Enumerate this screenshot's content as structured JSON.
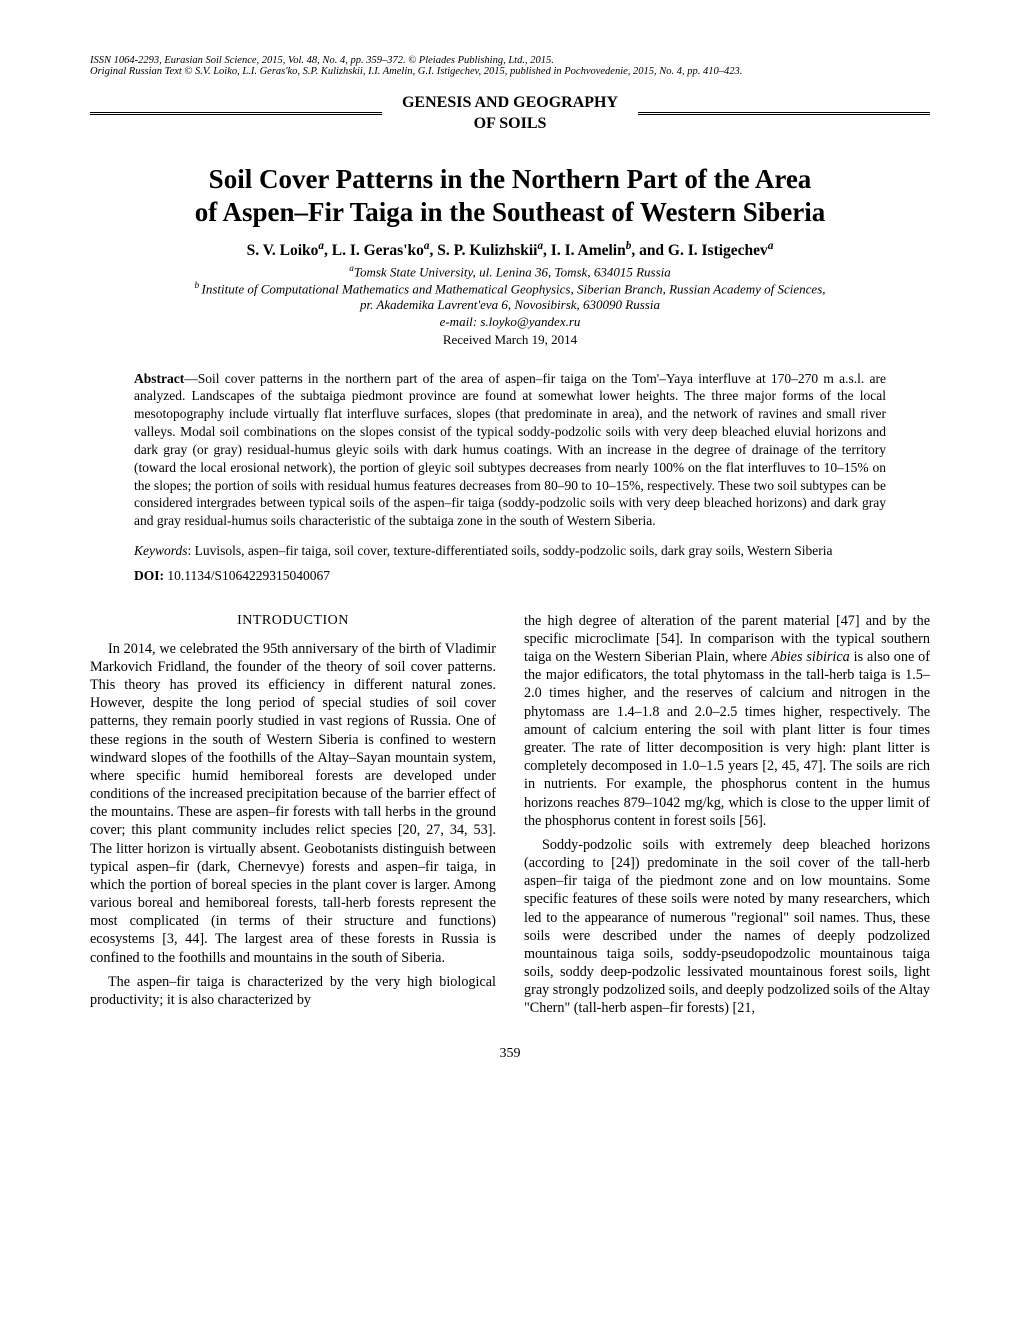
{
  "header": {
    "issn_line": "ISSN 1064-2293, Eurasian Soil Science, 2015, Vol. 48, No. 4, pp. 359–372. © Pleiades Publishing, Ltd., 2015.",
    "russian_text_line": "Original Russian Text © S.V. Loiko, L.I. Geras'ko, S.P. Kulizhskii, I.I. Amelin, G.I. Istigechev, 2015, published in Pochvovedenie, 2015, No. 4, pp. 410–423.",
    "section_title_line1": "GENESIS AND GEOGRAPHY",
    "section_title_line2": "OF SOILS"
  },
  "title": {
    "line1": "Soil Cover Patterns in the Northern Part of the Area",
    "line2": "of Aspen–Fir Taiga in the Southeast of Western Siberia"
  },
  "authors_html": "S. V. Loiko<sup>a</sup>, L. I. Geras'ko<sup>a</sup>, S. P. Kulizhskii<sup>a</sup>, I. I. Amelin<sup>b</sup>, and G. I. Istigechev<sup>a</sup>",
  "affiliations": {
    "a": "Tomsk State University, ul. Lenina 36, Tomsk, 634015 Russia",
    "b_line1": "Institute of Computational Mathematics and Mathematical Geophysics, Siberian Branch, Russian Academy of Sciences,",
    "b_line2": "pr. Akademika Lavrent'eva 6, Novosibirsk, 630090 Russia"
  },
  "email": "e-mail: s.loyko@yandex.ru",
  "received": "Received March 19, 2014",
  "abstract": {
    "label": "Abstract",
    "text": "—Soil cover patterns in the northern part of the area of aspen–fir taiga on the Tom'–Yaya interfluve at 170–270 m a.s.l. are analyzed. Landscapes of the subtaiga piedmont province are found at somewhat lower heights. The three major forms of the local mesotopography include virtually flat interfluve surfaces, slopes (that predominate in area), and the network of ravines and small river valleys. Modal soil combinations on the slopes consist of the typical soddy-podzolic soils with very deep bleached eluvial horizons and dark gray (or gray) residual-humus gleyic soils with dark humus coatings. With an increase in the degree of drainage of the territory (toward the local erosional network), the portion of gleyic soil subtypes decreases from nearly 100% on the flat interfluves to 10–15% on the slopes; the portion of soils with residual humus features decreases from 80–90 to 10–15%, respectively. These two soil subtypes can be considered intergrades between typical soils of the aspen–fir taiga (soddy-podzolic soils with very deep bleached horizons) and dark gray and gray residual-humus soils characteristic of the subtaiga zone in the south of Western Siberia."
  },
  "keywords": {
    "label": "Keywords",
    "text": ": Luvisols, aspen–fir taiga, soil cover, texture-differentiated soils, soddy-podzolic soils, dark gray soils, Western Siberia"
  },
  "doi": {
    "label": "DOI:",
    "value": " 10.1134/S1064229315040067"
  },
  "body": {
    "intro_heading": "INTRODUCTION",
    "left_col": {
      "p1": "In 2014, we celebrated the 95th anniversary of the birth of Vladimir Markovich Fridland, the founder of the theory of soil cover patterns. This theory has proved its efficiency in different natural zones. However, despite the long period of special studies of soil cover patterns, they remain poorly studied in vast regions of Russia. One of these regions in the south of Western Siberia is confined to western windward slopes of the foothills of the Altay–Sayan mountain system, where specific humid hemiboreal forests are developed under conditions of the increased precipitation because of the barrier effect of the mountains. These are aspen–fir forests with tall herbs in the ground cover; this plant community includes relict species [20, 27, 34, 53]. The litter horizon is virtually absent. Geobotanists distinguish between typical aspen–fir (dark, Chernevye) forests and aspen–fir taiga, in which the portion of boreal species in the plant cover is larger. Among various boreal and hemiboreal forests, tall-herb forests represent the most complicated (in terms of their structure and functions) ecosystems [3, 44]. The largest area of these forests in Russia is confined to the foothills and mountains in the south of Siberia.",
      "p2": "The aspen–fir taiga is characterized by the very high biological productivity; it is also characterized by"
    },
    "right_col": {
      "p1_pre": "the high degree of alteration of the parent material [47] and by the specific microclimate [54]. In comparison with the typical southern taiga on the Western Siberian Plain, where ",
      "p1_italic": "Abies sibirica",
      "p1_post": " is also one of the major edificators, the total phytomass in the tall-herb taiga is 1.5–2.0 times higher, and the reserves of calcium and nitrogen in the phytomass are 1.4–1.8 and 2.0–2.5 times higher, respectively. The amount of calcium entering the soil with plant litter is four times greater. The rate of litter decomposition is very high: plant litter is completely decomposed in 1.0–1.5 years [2, 45, 47]. The soils are rich in nutrients. For example, the phosphorus content in the humus horizons reaches 879–1042 mg/kg, which is close to the upper limit of the phosphorus content in forest soils [56].",
      "p2": "Soddy-podzolic soils with extremely deep bleached horizons (according to [24]) predominate in the soil cover of the tall-herb aspen–fir taiga of the piedmont zone and on low mountains. Some specific features of these soils were noted by many researchers, which led to the appearance of numerous \"regional\" soil names. Thus, these soils were described under the names of deeply podzolized mountainous taiga soils, soddy-pseudopodzolic mountainous taiga soils, soddy deep-podzolic lessivated mountainous forest soils, light gray strongly podzolized soils, and deeply podzolized soils of the Altay \"Chern\" (tall-herb aspen–fir forests) [21,"
    }
  },
  "page_number": "359"
}
